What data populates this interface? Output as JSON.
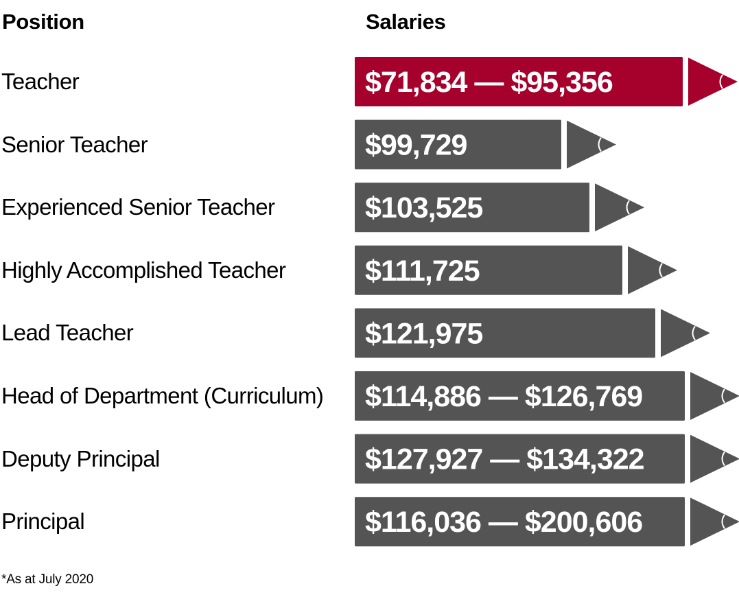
{
  "chart_data": {
    "type": "bar",
    "xlabel": "Position",
    "ylabel": "Salaries",
    "highlight_color": "#A6002C",
    "default_color": "#545454",
    "footnote": "*As at July 2020",
    "categories": [
      "Teacher",
      "Senior Teacher",
      "Experienced Senior Teacher",
      "Highly Accomplished Teacher",
      "Lead Teacher",
      "Head of Department (Curriculum)",
      "Deputy Principal",
      "Principal"
    ],
    "series": [
      {
        "values": [
          {
            "min": 71834,
            "max": 95356,
            "label": "$71,834 — $95,356",
            "highlight": true
          },
          {
            "min": 99729,
            "max": 99729,
            "label": "$99,729",
            "highlight": false
          },
          {
            "min": 103525,
            "max": 103525,
            "label": "$103,525",
            "highlight": false
          },
          {
            "min": 111725,
            "max": 111725,
            "label": "$111,725",
            "highlight": false
          },
          {
            "min": 121975,
            "max": 121975,
            "label": "$121,975",
            "highlight": false
          },
          {
            "min": 114886,
            "max": 126769,
            "label": "$114,886 — $126,769",
            "highlight": false
          },
          {
            "min": 127927,
            "max": 134322,
            "label": "$127,927 — $134,322",
            "highlight": false
          },
          {
            "min": 116036,
            "max": 200606,
            "label": "$116,036 — $200,606",
            "highlight": false
          }
        ]
      }
    ]
  }
}
